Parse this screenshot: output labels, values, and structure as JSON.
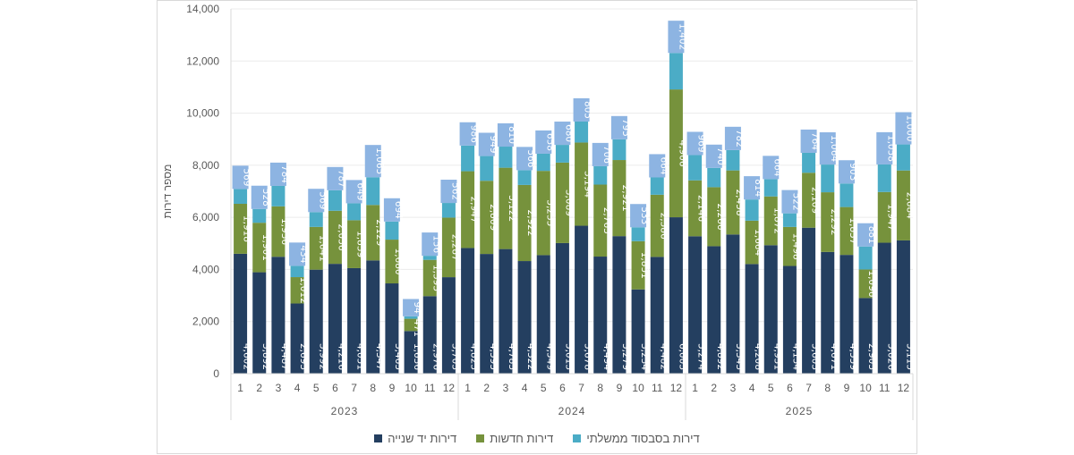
{
  "chart_data": {
    "type": "bar",
    "stacked": true,
    "title": "",
    "ylabel": "מספר דירות",
    "xlabel": "",
    "ylim": [
      0,
      14000
    ],
    "yticks": [
      "0",
      "2,000",
      "4,000",
      "6,000",
      "8,000",
      "10,000",
      "12,000",
      "14,000"
    ],
    "groups": [
      "2023",
      "2024",
      "2025"
    ],
    "months": [
      "1",
      "2",
      "3",
      "4",
      "5",
      "6",
      "7",
      "8",
      "9",
      "10",
      "11",
      "12"
    ],
    "series": [
      {
        "name": "דירות יד שנייה",
        "color": "#243f60",
        "values": [
          4602,
          3892,
          4487,
          2693,
          3992,
          4216,
          4051,
          4347,
          3465,
          1636,
          2976,
          3703,
          4823,
          4595,
          4783,
          4322,
          4549,
          5013,
          5678,
          4494,
          5279,
          3234,
          4482,
          6003,
          5274,
          4892,
          5343,
          4208,
          4931,
          4134,
          5603,
          4671,
          4559,
          2903,
          5026,
          5115
        ]
      },
      {
        "name": "דירות חדשות",
        "color": "#76923c",
        "values": [
          1918,
          1901,
          1936,
          1012,
          1641,
          2036,
          1839,
          2129,
          1680,
          471,
          1393,
          2287,
          2947,
          2809,
          3122,
          2922,
          3235,
          3089,
          3194,
          2763,
          2921,
          1851,
          2386,
          4906,
          2146,
          2266,
          2458,
          1664,
          1872,
          1498,
          2109,
          2292,
          1837,
          1096,
          1947,
          2684
        ]
      },
      {
        "name": "דירות בסבסוד ממשלתי",
        "color": "#4bacc6",
        "label_color": "#8db4e2",
        "values": [
          569,
          528,
          784,
          434,
          569,
          787,
          649,
          1065,
          694,
          94,
          156,
          562,
          986,
          949,
          810,
          566,
          658,
          680,
          805,
          706,
          795,
          533,
          664,
          1402,
          969,
          740,
          782,
          814,
          664,
          522,
          764,
          1064,
          903,
          881,
          1058,
          1000
        ]
      }
    ],
    "legend_position": "bottom",
    "legend_order": [
      0,
      1,
      2
    ]
  }
}
